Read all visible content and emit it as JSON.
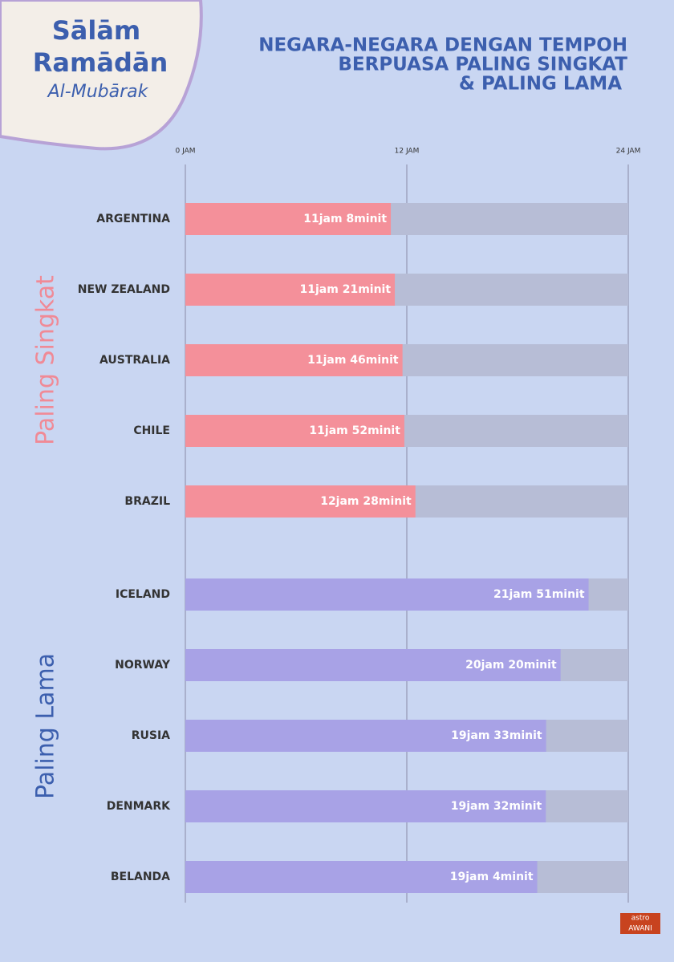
{
  "header": {
    "greeting": [
      "Sālām",
      "Ramādān",
      "Al-Mubārak"
    ],
    "logo": [
      "astro",
      "AWANI"
    ]
  },
  "chart_data": {
    "type": "bar",
    "orientation": "horizontal",
    "title": [
      "NEGARA-NEGARA DENGAN TEMPOH",
      "BERPUASA PALING SINGKAT",
      "& PALING LAMA"
    ],
    "xlim": [
      0,
      24
    ],
    "xticks": [
      {
        "value": 0,
        "label": "0 JAM"
      },
      {
        "value": 12,
        "label": "12 JAM"
      },
      {
        "value": 24,
        "label": "24 JAM"
      }
    ],
    "grid": true,
    "groups": [
      {
        "name": "Paling Singkat",
        "color": "#f4909a",
        "categories": [
          "ARGENTINA",
          "NEW ZEALAND",
          "AUSTRALIA",
          "CHILE",
          "BRAZIL"
        ],
        "values": [
          11.133,
          11.35,
          11.767,
          11.867,
          12.467
        ],
        "value_labels": [
          "11jam 8minit",
          "11jam 21minit",
          "11jam 46minit",
          "11jam 52minit",
          "12jam 28minit"
        ]
      },
      {
        "name": "Paling Lama",
        "color": "#a8a2e6",
        "categories": [
          "ICELAND",
          "NORWAY",
          "RUSIA",
          "DENMARK",
          "BELANDA"
        ],
        "values": [
          21.85,
          20.333,
          19.55,
          19.533,
          19.067
        ],
        "value_labels": [
          "21jam 51minit",
          "20jam 20minit",
          "19jam 33minit",
          "19jam 32minit",
          "19jam 4minit"
        ]
      }
    ]
  }
}
